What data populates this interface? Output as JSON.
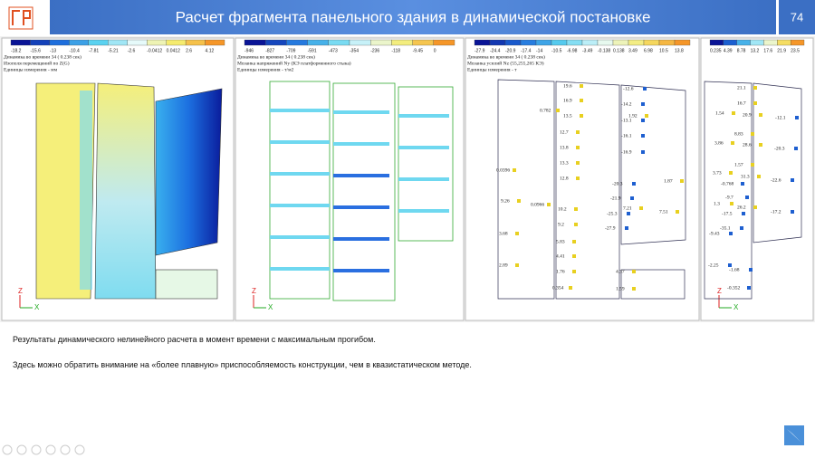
{
  "header": {
    "title": "Расчет фрагмента панельного здания в динамической постановке",
    "page_number": "74"
  },
  "panels": [
    {
      "legend": [
        "-18.2",
        "-15.6",
        "-13",
        "-10.4",
        "-7.81",
        "-5.21",
        "-2.6",
        "-0.0412",
        "0.0412",
        "2.6",
        "4.12"
      ],
      "header": [
        "Динамика во времени 34 ( 0.238 сек)",
        "Изополя перемещений по Z(G)",
        "Единицы измерения - мм"
      ],
      "axis": [
        "Z",
        "X"
      ],
      "labels": []
    },
    {
      "legend": [
        "-946",
        "-827",
        "-709",
        "-591",
        "-473",
        "-354",
        "-236",
        "-118",
        "-9.45",
        "0"
      ],
      "header": [
        "Динамика во времени 34 ( 0.238 сек)",
        "Мозаика напряжений Ny (КЭ платформенного стыка)",
        "Единицы измерения - т/м2"
      ],
      "axis": [
        "Z",
        "X"
      ],
      "labels": []
    },
    {
      "legend": [
        "-27.9",
        "-24.4",
        "-20.9",
        "-17.4",
        "-14",
        "-10.5",
        "-6.98",
        "-3.49",
        "-0.138",
        "0.138",
        "3.49",
        "6.98",
        "10.5",
        "13.8"
      ],
      "header": [
        "Динамика во времени 34 ( 0.238 сек)",
        "Мозаика усилий Nz (55,255,265 КЭ)",
        "Единицы измерения - т"
      ],
      "axis": [],
      "labels": [
        "19.6",
        "16.9",
        "0.782",
        "13.5",
        "12.7",
        "13.8",
        "13.3",
        "0.0396",
        "12.8",
        "9.26",
        "0.0966",
        "10.2",
        "9.2",
        "3.68",
        "5.83",
        "4.41",
        "2.89",
        "1.76",
        "0.354",
        "-12.6",
        "-14.2",
        "1.92",
        "-13.1",
        "-16.1",
        "-16.9",
        "-20.3",
        "1.87",
        "-21.9",
        "7.21",
        "-25.3",
        "7.51",
        "-27.9",
        "4.37",
        "1.59"
      ]
    },
    {
      "legend": [
        "0.235",
        "4.39",
        "8.78",
        "13.2",
        "17.6",
        "21.9",
        "23.5"
      ],
      "header": [],
      "axis": [
        "Z",
        "X"
      ],
      "labels": [
        "21.1",
        "16.7",
        "1.54",
        "-12.1",
        "20.9",
        "8.83",
        "3.86",
        "28.6",
        "-20.3",
        "1.57",
        "3.73",
        "31.3",
        "-0.768",
        "-22.6",
        "-9.7",
        "1.3",
        "26.2",
        "-17.2",
        "-17.5",
        "-35.1",
        "-9.43",
        "-2.25",
        "-1.68",
        "-0.352"
      ]
    }
  ],
  "body": [
    "Результаты динамического нелинейного расчета в момент времени с максимальным прогибом.",
    "Здесь можно обратить внимание на «более плавную» приспособляемость конструкции, чем в квазистатическом методе."
  ]
}
